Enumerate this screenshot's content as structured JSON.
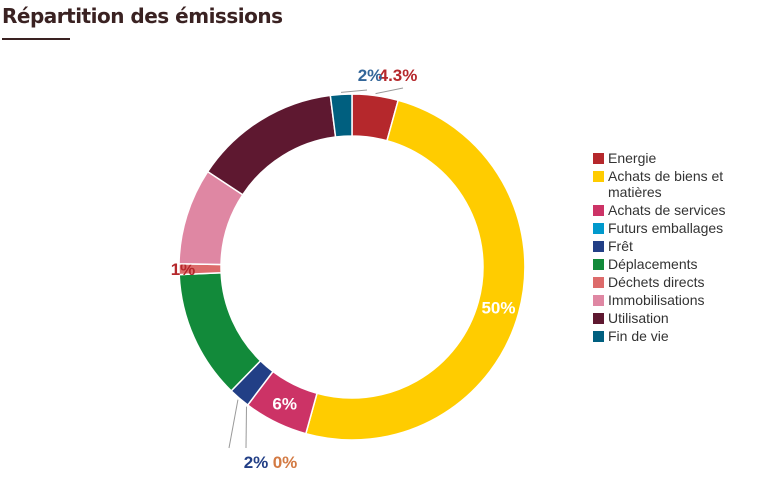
{
  "header": {
    "title": "Répartition des émissions"
  },
  "chart_data": {
    "type": "pie",
    "donut": true,
    "legend_position": "right",
    "categories": [
      "Energie",
      "Achats de biens et matières",
      "Achats de services",
      "Futurs emballages",
      "Frêt",
      "Déplacements",
      "Déchets directs",
      "Immobilisations",
      "Utilisation",
      "Fin de vie"
    ],
    "values": [
      4.3,
      50,
      6,
      0,
      2,
      12,
      1,
      9,
      13.7,
      2
    ],
    "labels": [
      "4.3%",
      "50%",
      "6%",
      "0%",
      "2%",
      "",
      "1%",
      "",
      "",
      "2%"
    ],
    "colors": [
      "#b5282c",
      "#ffcc00",
      "#cc3366",
      "#0099cc",
      "#223f86",
      "#128a3a",
      "#dd6b6b",
      "#df87a3",
      "#5e1830",
      "#005f7f"
    ]
  }
}
